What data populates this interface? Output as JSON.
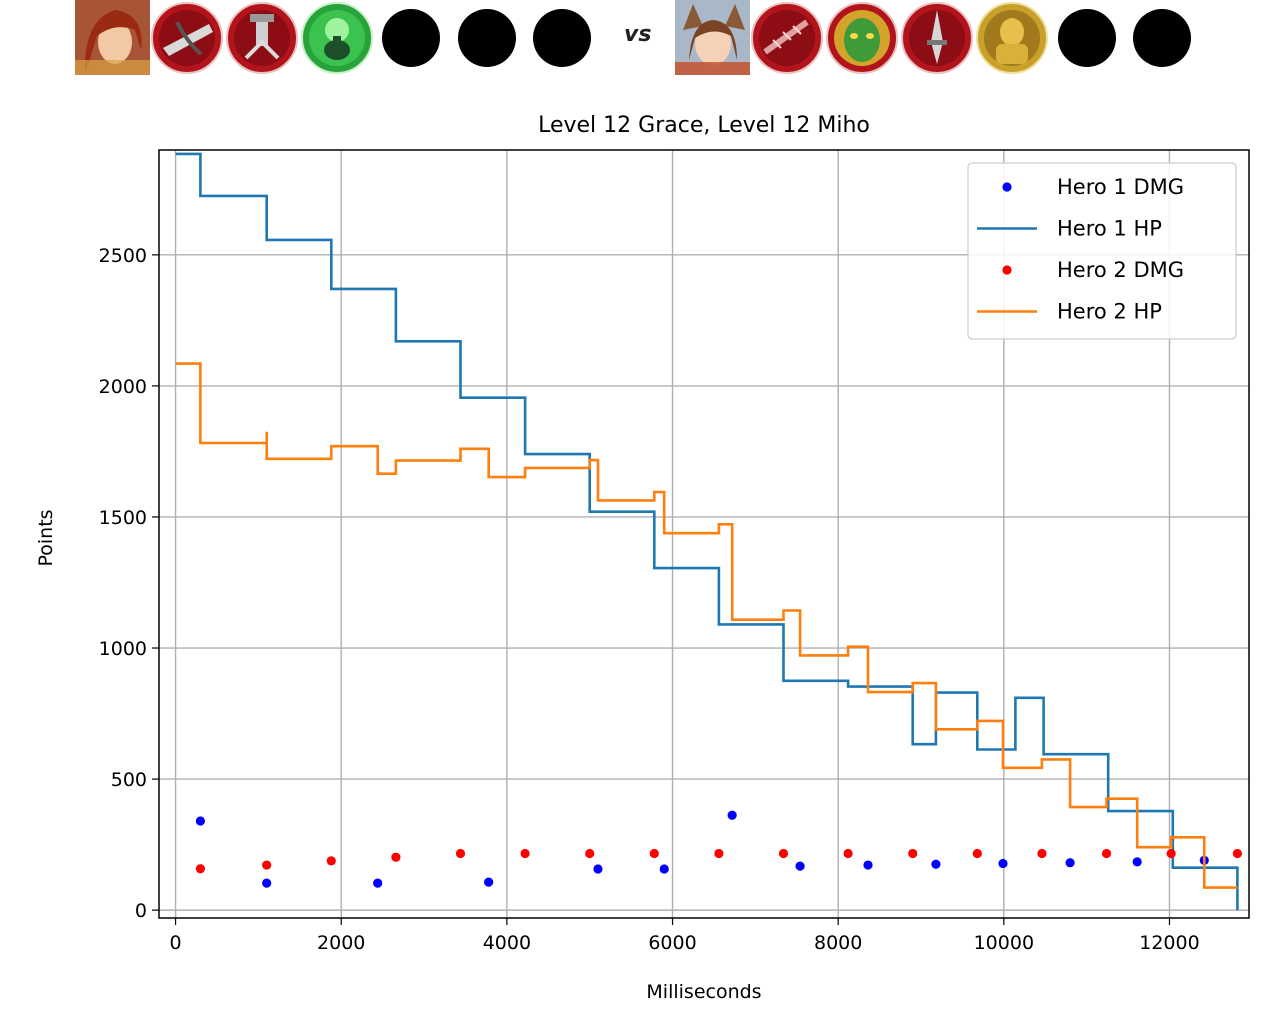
{
  "matchup": {
    "vs_label": "vs",
    "hero1": {
      "portrait_icon": "red-haired-heroine-portrait-icon",
      "items": [
        "crossbow-item-icon",
        "turret-item-icon",
        "green-potion-item-icon",
        "empty-slot-icon",
        "empty-slot-icon",
        "empty-slot-icon"
      ]
    },
    "hero2": {
      "portrait_icon": "fox-eared-heroine-portrait-icon",
      "items": [
        "spiked-bow-item-icon",
        "green-mask-item-icon",
        "dagger-item-icon",
        "gold-armor-item-icon",
        "empty-slot-icon",
        "empty-slot-icon"
      ]
    }
  },
  "chart_data": {
    "type": "line",
    "title": "Level 12 Grace, Level 12 Miho",
    "xlabel": "Milliseconds",
    "ylabel": "Points",
    "xlim": [
      -200,
      12960
    ],
    "ylim": [
      -30,
      2900
    ],
    "xticks": [
      0,
      2000,
      4000,
      6000,
      8000,
      10000,
      12000
    ],
    "yticks": [
      0,
      500,
      1000,
      1500,
      2000,
      2500
    ],
    "grid": true,
    "legend_position": "top-right",
    "series": [
      {
        "name": "Hero 1 DMG",
        "kind": "scatter",
        "color": "#0000ff",
        "points": [
          [
            300,
            340
          ],
          [
            1100,
            103
          ],
          [
            2440,
            103
          ],
          [
            3780,
            107
          ],
          [
            5100,
            157
          ],
          [
            5900,
            157
          ],
          [
            6720,
            362
          ],
          [
            7540,
            168
          ],
          [
            8360,
            172
          ],
          [
            9180,
            175
          ],
          [
            9990,
            178
          ],
          [
            10800,
            181
          ],
          [
            11610,
            184
          ],
          [
            12420,
            190
          ]
        ]
      },
      {
        "name": "Hero 1 HP",
        "kind": "step",
        "color": "#1f77b4",
        "points": [
          [
            0,
            2885
          ],
          [
            300,
            2885
          ],
          [
            300,
            2725
          ],
          [
            1100,
            2725
          ],
          [
            1100,
            2557
          ],
          [
            1880,
            2557
          ],
          [
            1880,
            2370
          ],
          [
            2660,
            2370
          ],
          [
            2660,
            2170
          ],
          [
            3440,
            2170
          ],
          [
            3440,
            1955
          ],
          [
            4220,
            1955
          ],
          [
            4220,
            1740
          ],
          [
            5000,
            1740
          ],
          [
            5000,
            1520
          ],
          [
            5780,
            1520
          ],
          [
            5780,
            1305
          ],
          [
            6560,
            1305
          ],
          [
            6560,
            1090
          ],
          [
            7340,
            1090
          ],
          [
            7340,
            875
          ],
          [
            8120,
            875
          ],
          [
            8120,
            853
          ],
          [
            8900,
            853
          ],
          [
            8900,
            633
          ],
          [
            9180,
            633
          ],
          [
            9180,
            830
          ],
          [
            9680,
            830
          ],
          [
            9680,
            613
          ],
          [
            10140,
            613
          ],
          [
            10140,
            810
          ],
          [
            10480,
            810
          ],
          [
            10480,
            595
          ],
          [
            11260,
            595
          ],
          [
            11260,
            378
          ],
          [
            12040,
            378
          ],
          [
            12040,
            162
          ],
          [
            12820,
            162
          ],
          [
            12820,
            0
          ]
        ]
      },
      {
        "name": "Hero 2 DMG",
        "kind": "scatter",
        "color": "#ff0000",
        "points": [
          [
            300,
            158
          ],
          [
            1100,
            172
          ],
          [
            1880,
            188
          ],
          [
            2660,
            202
          ],
          [
            3440,
            216
          ],
          [
            4220,
            216
          ],
          [
            5000,
            216
          ],
          [
            5780,
            216
          ],
          [
            6560,
            216
          ],
          [
            7340,
            216
          ],
          [
            8120,
            216
          ],
          [
            8900,
            216
          ],
          [
            9680,
            216
          ],
          [
            10460,
            216
          ],
          [
            11240,
            216
          ],
          [
            12020,
            216
          ],
          [
            12820,
            216
          ]
        ]
      },
      {
        "name": "Hero 2 HP",
        "kind": "step",
        "color": "#ff7f0e",
        "points": [
          [
            0,
            2085
          ],
          [
            300,
            2085
          ],
          [
            300,
            1782
          ],
          [
            1100,
            1782
          ],
          [
            1100,
            1825
          ],
          [
            1100,
            1722
          ],
          [
            1880,
            1722
          ],
          [
            1880,
            1770
          ],
          [
            2440,
            1770
          ],
          [
            2440,
            1665
          ],
          [
            2660,
            1665
          ],
          [
            2660,
            1715
          ],
          [
            3440,
            1715
          ],
          [
            3440,
            1760
          ],
          [
            3780,
            1760
          ],
          [
            3780,
            1652
          ],
          [
            4220,
            1652
          ],
          [
            4220,
            1687
          ],
          [
            5000,
            1687
          ],
          [
            5000,
            1717
          ],
          [
            5100,
            1717
          ],
          [
            5100,
            1563
          ],
          [
            5780,
            1563
          ],
          [
            5780,
            1595
          ],
          [
            5900,
            1595
          ],
          [
            5900,
            1438
          ],
          [
            6560,
            1438
          ],
          [
            6560,
            1472
          ],
          [
            6720,
            1472
          ],
          [
            6720,
            1108
          ],
          [
            7340,
            1108
          ],
          [
            7340,
            1143
          ],
          [
            7540,
            1143
          ],
          [
            7540,
            972
          ],
          [
            8120,
            972
          ],
          [
            8120,
            1005
          ],
          [
            8360,
            1005
          ],
          [
            8360,
            832
          ],
          [
            8900,
            832
          ],
          [
            8900,
            866
          ],
          [
            9180,
            866
          ],
          [
            9180,
            690
          ],
          [
            9680,
            690
          ],
          [
            9680,
            722
          ],
          [
            9990,
            722
          ],
          [
            9990,
            543
          ],
          [
            10460,
            543
          ],
          [
            10460,
            575
          ],
          [
            10800,
            575
          ],
          [
            10800,
            393
          ],
          [
            11240,
            393
          ],
          [
            11240,
            425
          ],
          [
            11610,
            425
          ],
          [
            11610,
            240
          ],
          [
            12020,
            240
          ],
          [
            12020,
            278
          ],
          [
            12420,
            278
          ],
          [
            12420,
            86
          ],
          [
            12820,
            86
          ]
        ]
      }
    ]
  }
}
